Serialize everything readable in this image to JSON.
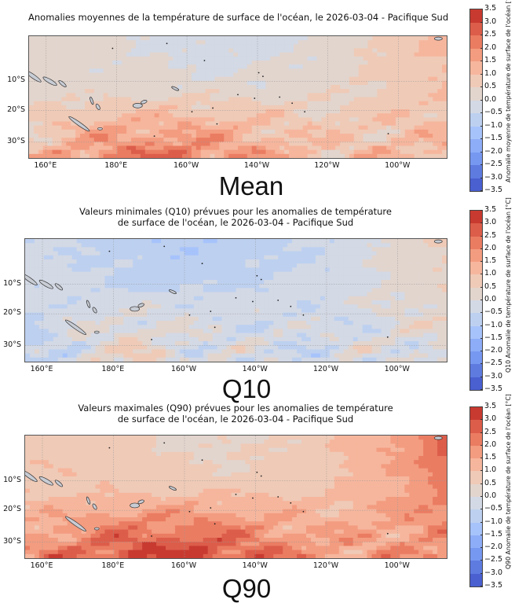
{
  "panels": [
    {
      "id": "mean",
      "title_lines": [
        "Anomalies moyennes de la température de surface de l'océan, le 2026-03-04 - Pacifique Sud"
      ],
      "caption": "Mean",
      "colorbar_label": "Anomalie moyenne de température de surface de l'océan [°C]",
      "tone": "warm-south"
    },
    {
      "id": "q10",
      "title_lines": [
        "Valeurs minimales (Q10) prévues pour les anomalies de température",
        "de surface de l'océan, le 2026-03-04 - Pacifique Sud"
      ],
      "caption": "Q10",
      "colorbar_label": "Q10 Anomalie de température de surface de l'océan [°C]",
      "tone": "cool"
    },
    {
      "id": "q90",
      "title_lines": [
        "Valeurs maximales (Q90) prévues pour les anomalies de température",
        "de surface de l'océan, le 2026-03-04 - Pacifique Sud"
      ],
      "caption": "Q90",
      "colorbar_label": "Q90 Anomalie de température de surface de l'océan [°C]",
      "tone": "hot"
    }
  ],
  "axes": {
    "x_ticks": [
      "160°E",
      "180°E",
      "160°W",
      "140°W",
      "120°W",
      "100°W"
    ],
    "y_ticks": [
      "10°S",
      "20°S",
      "30°S"
    ]
  },
  "colorbar": {
    "ticks": [
      "3.5",
      "3.0",
      "2.5",
      "2.0",
      "1.5",
      "1.0",
      "0.5",
      "0.0",
      "−0.5",
      "−1.0",
      "−1.5",
      "−2.0",
      "−2.5",
      "−3.0",
      "−3.5"
    ],
    "range": [
      -3.5,
      3.5
    ],
    "colors": [
      "#c83a30",
      "#dc5d4a",
      "#ea7c62",
      "#f39c80",
      "#f6b69d",
      "#efcab7",
      "#e2d5ce",
      "#d3d9e5",
      "#bdd0f0",
      "#a7c3fb",
      "#8ead f8",
      "#7798f0",
      "#5e7be0",
      "#4a5fd0"
    ]
  }
}
